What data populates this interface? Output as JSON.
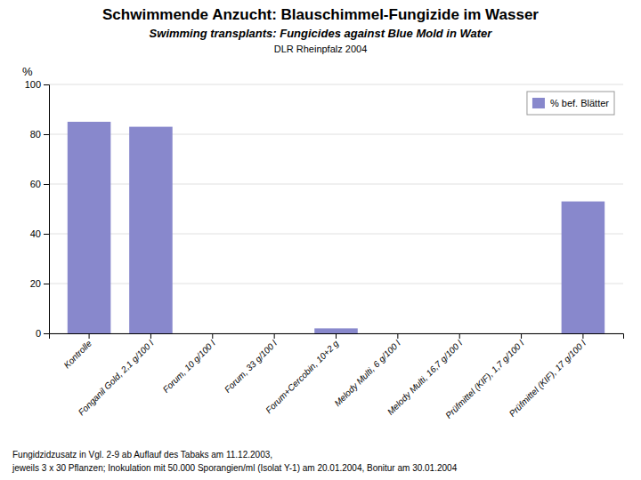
{
  "chart_data": {
    "type": "bar",
    "title": "Schwimmende Anzucht: Blauschimmel-Fungizide im Wasser",
    "subtitle": [
      "Swimming transplants: Fungicides against Blue Mold in Water",
      "DLR Rheinpfalz 2004"
    ],
    "y_label": "%",
    "categories": [
      "Kontrolle",
      "Fonganil Gold, 2,1 g/100 l",
      "Forum, 10 g/100 l",
      "Forum, 33 g/100 l",
      "Forum+Cercobin, 10+2 g",
      "Melody Multi, 6 g/100 l",
      "Melody Multi, 16,7 g/100 l",
      "Prüfmittel (KIF), 1,7 g/100 l",
      "Prüfmittel (KIF), 17 g/100 l"
    ],
    "series": [
      {
        "name": "% bef. Blätter",
        "color": "#8888cc",
        "values": [
          85,
          83,
          0,
          0,
          2,
          0,
          0,
          0,
          53
        ]
      }
    ],
    "ylim": [
      0,
      100
    ],
    "yticks": [
      0,
      20,
      40,
      60,
      80,
      100
    ],
    "grid": true,
    "legend": "upper right",
    "annotations": [
      "Fungidzidzusatz in Vgl. 2-9 ab Auflauf des Tabaks am 11.12.2003,",
      "jeweils 3 x 30 Pflanzen; Inokulation mit 50.000 Sporangien/ml (Isolat Y-1) am 20.01.2004, Bonitur am 30.01.2004"
    ]
  }
}
